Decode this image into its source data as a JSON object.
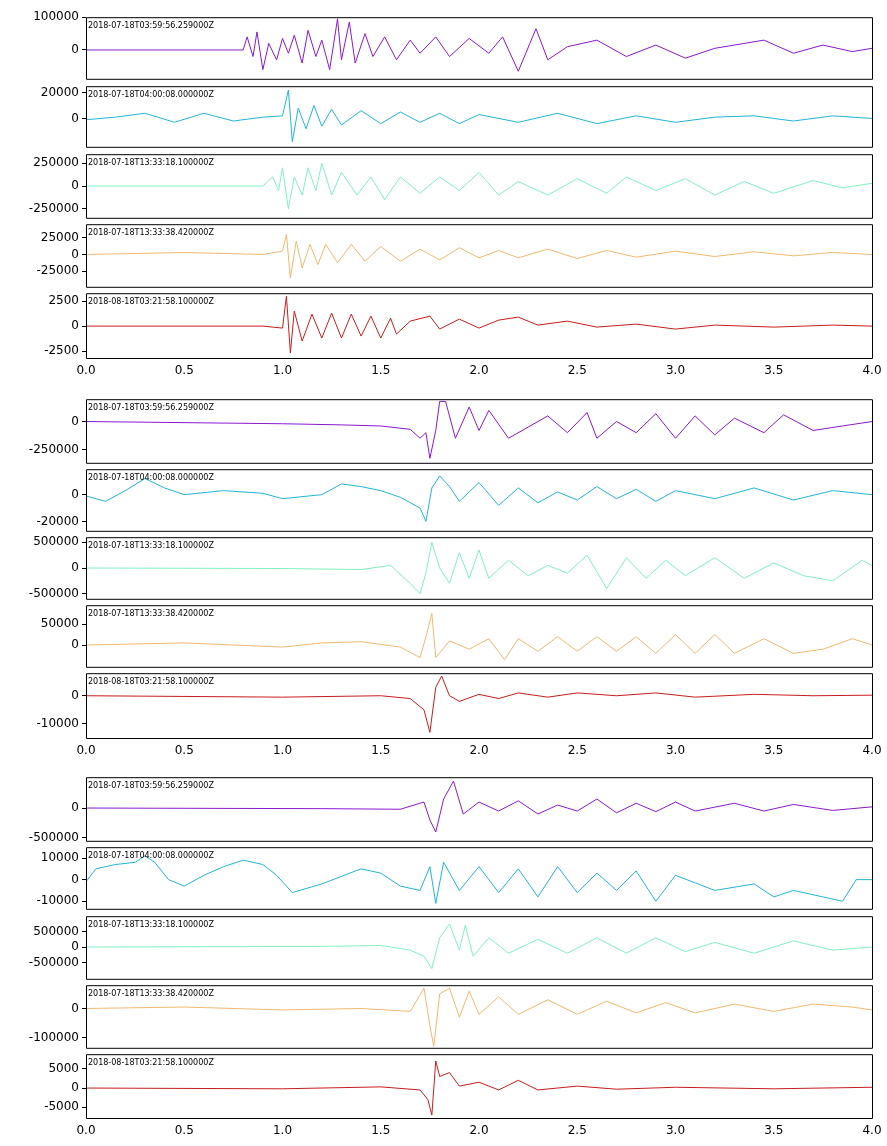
{
  "chart_data": [
    {
      "type": "line",
      "color": "#8a18d0",
      "annotations": [
        "2018-07-18T03:59:56.259000Z"
      ],
      "xlim": [
        0,
        4
      ],
      "ylim": [
        -88000,
        100000
      ],
      "yticks": [
        0,
        100000
      ],
      "tick_labels": "y",
      "x": [
        0,
        0.8,
        0.82,
        0.85,
        0.87,
        0.9,
        0.93,
        0.97,
        1.0,
        1.03,
        1.06,
        1.1,
        1.13,
        1.17,
        1.2,
        1.24,
        1.28,
        1.3,
        1.34,
        1.37,
        1.42,
        1.46,
        1.52,
        1.58,
        1.65,
        1.7,
        1.78,
        1.85,
        1.95,
        2.05,
        2.12,
        2.2,
        2.29,
        2.35,
        2.45,
        2.6,
        2.75,
        2.9,
        3.05,
        3.2,
        3.45,
        3.6,
        3.75,
        3.9,
        4
      ],
      "values": [
        0,
        0,
        40000,
        -20000,
        55000,
        -60000,
        20000,
        -30000,
        35000,
        -10000,
        45000,
        -40000,
        60000,
        -20000,
        30000,
        -60000,
        95000,
        -30000,
        85000,
        -40000,
        50000,
        -20000,
        40000,
        -30000,
        30000,
        -10000,
        40000,
        -20000,
        35000,
        -10000,
        40000,
        -65000,
        65000,
        -30000,
        10000,
        30000,
        -20000,
        15000,
        -25000,
        5000,
        30000,
        -10000,
        15000,
        -5000,
        5000
      ]
    },
    {
      "type": "line",
      "color": "#22b4d8",
      "annotations": [
        "2018-07-18T04:00:08.000000Z"
      ],
      "xlim": [
        0,
        4
      ],
      "ylim": [
        -22000,
        25000
      ],
      "yticks": [
        0,
        20000
      ],
      "tick_labels": "y",
      "x": [
        0,
        0.15,
        0.3,
        0.45,
        0.6,
        0.75,
        0.9,
        1.0,
        1.03,
        1.05,
        1.08,
        1.12,
        1.16,
        1.2,
        1.25,
        1.3,
        1.4,
        1.5,
        1.6,
        1.7,
        1.8,
        1.9,
        2.0,
        2.2,
        2.4,
        2.6,
        2.8,
        3.0,
        3.2,
        3.4,
        3.6,
        3.8,
        4
      ],
      "values": [
        -1000,
        1000,
        4000,
        -3000,
        4000,
        -2000,
        1000,
        2000,
        22000,
        -18000,
        8000,
        -8000,
        10000,
        -6000,
        7000,
        -5000,
        6000,
        -4000,
        5000,
        -3000,
        4000,
        -4000,
        3000,
        -3000,
        4000,
        -4000,
        2000,
        -3000,
        1000,
        2000,
        -2000,
        2000,
        0
      ]
    },
    {
      "type": "line",
      "color": "#80f0c0",
      "annotations": [
        "2018-07-18T13:33:18.100000Z"
      ],
      "xlim": [
        0,
        4
      ],
      "ylim": [
        -350000,
        350000
      ],
      "yticks": [
        -250000,
        0,
        250000
      ],
      "tick_labels": "y",
      "x": [
        0,
        0.9,
        0.95,
        0.98,
        1.0,
        1.03,
        1.06,
        1.1,
        1.13,
        1.17,
        1.2,
        1.25,
        1.3,
        1.38,
        1.45,
        1.52,
        1.6,
        1.7,
        1.8,
        1.9,
        2.0,
        2.1,
        2.2,
        2.35,
        2.5,
        2.65,
        2.75,
        2.9,
        3.05,
        3.2,
        3.35,
        3.5,
        3.7,
        3.85,
        4
      ],
      "values": [
        0,
        0,
        100000,
        -50000,
        200000,
        -250000,
        100000,
        -100000,
        200000,
        -50000,
        250000,
        -100000,
        150000,
        -100000,
        100000,
        -150000,
        100000,
        -80000,
        100000,
        -50000,
        150000,
        -100000,
        50000,
        -100000,
        80000,
        -80000,
        100000,
        -50000,
        80000,
        -100000,
        50000,
        -80000,
        60000,
        -20000,
        30000
      ]
    },
    {
      "type": "line",
      "color": "#f0b870",
      "annotations": [
        "2018-07-18T13:33:38.420000Z"
      ],
      "xlim": [
        0,
        4
      ],
      "ylim": [
        -48000,
        45000
      ],
      "yticks": [
        -25000,
        0,
        25000
      ],
      "tick_labels": "y",
      "x": [
        0,
        0.5,
        0.9,
        1.0,
        1.02,
        1.04,
        1.07,
        1.1,
        1.14,
        1.18,
        1.22,
        1.28,
        1.35,
        1.42,
        1.5,
        1.6,
        1.7,
        1.8,
        1.9,
        2.0,
        2.1,
        2.2,
        2.35,
        2.5,
        2.65,
        2.8,
        3.0,
        3.2,
        3.4,
        3.6,
        3.8,
        4
      ],
      "values": [
        0,
        3000,
        0,
        5000,
        30000,
        -35000,
        20000,
        -20000,
        15000,
        -15000,
        15000,
        -12000,
        15000,
        -10000,
        12000,
        -10000,
        8000,
        -8000,
        10000,
        -5000,
        6000,
        -5000,
        8000,
        -6000,
        6000,
        -4000,
        5000,
        -3000,
        4000,
        -2000,
        3000,
        0
      ]
    },
    {
      "type": "line",
      "color": "#c81c1c",
      "annotations": [
        "2018-08-18T03:21:58.100000Z"
      ],
      "xlim": [
        0,
        4
      ],
      "xticks": [
        {
          "value": 0,
          "label": "0.0"
        },
        {
          "value": 0.5,
          "label": "0.5"
        },
        {
          "value": 1,
          "label": "1.0"
        },
        {
          "value": 1.5,
          "label": "1.5"
        },
        {
          "value": 2,
          "label": "2.0"
        },
        {
          "value": 2.5,
          "label": "2.5"
        },
        {
          "value": 3,
          "label": "3.0"
        },
        {
          "value": 3.5,
          "label": "3.5"
        },
        {
          "value": 4,
          "label": "4.0"
        }
      ],
      "ylim": [
        -3200,
        3300
      ],
      "yticks": [
        -2500,
        0,
        2500
      ],
      "x": [
        0,
        0.9,
        1.0,
        1.02,
        1.04,
        1.06,
        1.1,
        1.15,
        1.2,
        1.25,
        1.3,
        1.35,
        1.4,
        1.45,
        1.5,
        1.55,
        1.58,
        1.65,
        1.75,
        1.8,
        1.9,
        2.0,
        2.1,
        2.2,
        2.3,
        2.45,
        2.6,
        2.8,
        3.0,
        3.2,
        3.5,
        3.8,
        4
      ],
      "values": [
        0,
        0,
        -200,
        3000,
        -2700,
        1500,
        -1500,
        1200,
        -1200,
        1300,
        -1200,
        1200,
        -1000,
        1000,
        -1200,
        800,
        -800,
        500,
        1000,
        -300,
        700,
        -200,
        600,
        900,
        100,
        500,
        -100,
        200,
        -300,
        100,
        -100,
        100,
        0
      ]
    },
    {
      "type": "line",
      "color": "#8a18d0",
      "annotations": [
        "2018-07-18T03:59:56.259000Z"
      ],
      "xlim": [
        0,
        4
      ],
      "ylim": [
        -370000,
        200000
      ],
      "yticks": [
        -250000,
        0
      ],
      "tick_labels": "y",
      "x": [
        0,
        1.0,
        1.3,
        1.5,
        1.65,
        1.7,
        1.73,
        1.75,
        1.78,
        1.8,
        1.83,
        1.88,
        1.95,
        2.0,
        2.05,
        2.15,
        2.25,
        2.35,
        2.45,
        2.55,
        2.6,
        2.7,
        2.8,
        2.9,
        3.0,
        3.1,
        3.2,
        3.3,
        3.45,
        3.55,
        3.7,
        3.85,
        4
      ],
      "values": [
        0,
        -20000,
        -30000,
        -40000,
        -70000,
        -150000,
        -100000,
        -330000,
        -80000,
        180000,
        180000,
        -150000,
        130000,
        -80000,
        100000,
        -150000,
        -50000,
        50000,
        -100000,
        80000,
        -150000,
        0,
        -100000,
        70000,
        -150000,
        50000,
        -120000,
        30000,
        -100000,
        60000,
        -80000,
        -40000,
        0
      ]
    },
    {
      "type": "line",
      "color": "#22b4d8",
      "annotations": [
        "2018-07-18T04:00:08.000000Z"
      ],
      "xlim": [
        0,
        4
      ],
      "ylim": [
        -27000,
        19000
      ],
      "yticks": [
        -20000,
        0
      ],
      "tick_labels": "y",
      "x": [
        0,
        0.1,
        0.2,
        0.3,
        0.4,
        0.5,
        0.7,
        0.9,
        1.0,
        1.2,
        1.3,
        1.4,
        1.5,
        1.6,
        1.7,
        1.73,
        1.76,
        1.8,
        1.85,
        1.9,
        2.0,
        2.1,
        2.2,
        2.3,
        2.4,
        2.5,
        2.6,
        2.7,
        2.8,
        2.9,
        3.0,
        3.2,
        3.4,
        3.6,
        3.8,
        4
      ],
      "values": [
        -1000,
        -5000,
        3000,
        12000,
        5000,
        0,
        3000,
        1000,
        -3000,
        0,
        8000,
        6000,
        3000,
        -2000,
        -10000,
        -20000,
        5000,
        14000,
        6000,
        -5000,
        9000,
        -8000,
        5000,
        -6000,
        2000,
        -4000,
        6000,
        -3000,
        4000,
        -5000,
        3000,
        -3000,
        5000,
        -4000,
        3000,
        0
      ]
    },
    {
      "type": "line",
      "color": "#80f0c0",
      "annotations": [
        "2018-07-18T13:33:18.100000Z"
      ],
      "xlim": [
        0,
        4
      ],
      "ylim": [
        -600000,
        600000
      ],
      "yticks": [
        -500000,
        0,
        500000
      ],
      "tick_labels": "y",
      "x": [
        0,
        1.0,
        1.4,
        1.55,
        1.65,
        1.7,
        1.73,
        1.76,
        1.8,
        1.85,
        1.9,
        1.95,
        2.0,
        2.05,
        2.15,
        2.25,
        2.35,
        2.45,
        2.55,
        2.65,
        2.75,
        2.85,
        2.95,
        3.05,
        3.2,
        3.35,
        3.5,
        3.65,
        3.8,
        3.95,
        4
      ],
      "values": [
        0,
        -10000,
        -30000,
        50000,
        -300000,
        -500000,
        -100000,
        500000,
        0,
        -300000,
        300000,
        -200000,
        350000,
        -200000,
        150000,
        -150000,
        50000,
        -100000,
        250000,
        -400000,
        200000,
        -200000,
        150000,
        -150000,
        200000,
        -200000,
        100000,
        -150000,
        -250000,
        150000,
        50000
      ]
    },
    {
      "type": "line",
      "color": "#f0b870",
      "annotations": [
        "2018-07-18T13:33:38.420000Z"
      ],
      "xlim": [
        0,
        4
      ],
      "ylim": [
        -52000,
        95000
      ],
      "yticks": [
        0,
        50000
      ],
      "tick_labels": "y",
      "x": [
        0,
        0.5,
        1.0,
        1.2,
        1.4,
        1.6,
        1.7,
        1.73,
        1.76,
        1.78,
        1.85,
        1.95,
        2.05,
        2.13,
        2.2,
        2.3,
        2.4,
        2.5,
        2.6,
        2.7,
        2.8,
        2.9,
        3.0,
        3.1,
        3.2,
        3.3,
        3.45,
        3.6,
        3.75,
        3.9,
        4
      ],
      "values": [
        0,
        5000,
        -5000,
        5000,
        8000,
        -5000,
        -30000,
        20000,
        75000,
        -30000,
        10000,
        -10000,
        15000,
        -35000,
        15000,
        -15000,
        20000,
        -15000,
        20000,
        -15000,
        20000,
        -20000,
        25000,
        -20000,
        25000,
        -20000,
        15000,
        -20000,
        -10000,
        15000,
        0
      ]
    },
    {
      "type": "line",
      "color": "#c81c1c",
      "annotations": [
        "2018-08-18T03:21:58.100000Z"
      ],
      "xlim": [
        0,
        4
      ],
      "xticks": [
        {
          "value": 0,
          "label": "0.0"
        },
        {
          "value": 0.5,
          "label": "0.5"
        },
        {
          "value": 1,
          "label": "1.0"
        },
        {
          "value": 1.5,
          "label": "1.5"
        },
        {
          "value": 2,
          "label": "2.0"
        },
        {
          "value": 2.5,
          "label": "2.5"
        },
        {
          "value": 3,
          "label": "3.0"
        },
        {
          "value": 3.5,
          "label": "3.5"
        },
        {
          "value": 4,
          "label": "4.0"
        }
      ],
      "ylim": [
        -15000,
        8000
      ],
      "yticks": [
        -10000,
        0
      ],
      "x": [
        0,
        1.0,
        1.5,
        1.65,
        1.72,
        1.75,
        1.78,
        1.81,
        1.85,
        1.9,
        2.0,
        2.1,
        2.2,
        2.35,
        2.5,
        2.7,
        2.9,
        3.1,
        3.4,
        3.7,
        4
      ],
      "values": [
        0,
        -500,
        0,
        -1000,
        -5000,
        -13000,
        3000,
        7000,
        0,
        -2000,
        500,
        -1000,
        1000,
        -500,
        1000,
        0,
        1000,
        -500,
        500,
        0,
        200
      ]
    },
    {
      "type": "line",
      "color": "#8a18d0",
      "annotations": [
        "2018-07-18T03:59:56.259000Z"
      ],
      "xlim": [
        0,
        4
      ],
      "ylim": [
        -547000,
        515000
      ],
      "yticks": [
        -500000,
        0
      ],
      "tick_labels": "y",
      "x": [
        0,
        1.2,
        1.6,
        1.72,
        1.75,
        1.78,
        1.82,
        1.87,
        1.92,
        2.0,
        2.1,
        2.2,
        2.3,
        2.4,
        2.5,
        2.6,
        2.7,
        2.8,
        2.9,
        3.0,
        3.1,
        3.3,
        3.45,
        3.6,
        3.8,
        4
      ],
      "values": [
        0,
        -10000,
        -20000,
        100000,
        -200000,
        -400000,
        150000,
        450000,
        -100000,
        100000,
        -50000,
        120000,
        -100000,
        50000,
        -50000,
        150000,
        -80000,
        80000,
        -60000,
        100000,
        -50000,
        80000,
        -50000,
        60000,
        -40000,
        20000
      ]
    },
    {
      "type": "line",
      "color": "#22b4d8",
      "annotations": [
        "2018-07-18T04:00:08.000000Z"
      ],
      "xlim": [
        0,
        4
      ],
      "ylim": [
        -13500,
        15000
      ],
      "yticks": [
        -10000,
        0,
        10000
      ],
      "tick_labels": "y",
      "x": [
        0,
        0.05,
        0.15,
        0.25,
        0.3,
        0.35,
        0.42,
        0.5,
        0.6,
        0.7,
        0.8,
        0.9,
        0.97,
        1.05,
        1.2,
        1.4,
        1.5,
        1.6,
        1.7,
        1.75,
        1.78,
        1.82,
        1.9,
        2.0,
        2.1,
        2.2,
        2.3,
        2.4,
        2.5,
        2.6,
        2.7,
        2.8,
        2.9,
        3.0,
        3.2,
        3.4,
        3.5,
        3.6,
        3.75,
        3.85,
        3.92,
        4
      ],
      "values": [
        -1000,
        5000,
        7000,
        8000,
        11000,
        8000,
        0,
        -3000,
        2000,
        6000,
        9000,
        7000,
        2000,
        -6000,
        -2000,
        5000,
        3000,
        -3000,
        -5000,
        6000,
        -11000,
        8000,
        -5000,
        6000,
        -6000,
        5000,
        -8000,
        6000,
        -6000,
        3000,
        -5000,
        4000,
        -10000,
        2000,
        -5000,
        -2000,
        -8000,
        -5000,
        -8000,
        -10000,
        0,
        0
      ]
    },
    {
      "type": "line",
      "color": "#80f0c0",
      "annotations": [
        "2018-07-18T13:33:18.100000Z"
      ],
      "xlim": [
        0,
        4
      ],
      "ylim": [
        -1030000,
        1000000
      ],
      "yticks": [
        -500000,
        0,
        500000
      ],
      "tick_labels": "y",
      "x": [
        0,
        1.2,
        1.5,
        1.65,
        1.72,
        1.76,
        1.8,
        1.85,
        1.9,
        1.93,
        1.97,
        2.05,
        2.15,
        2.3,
        2.45,
        2.6,
        2.75,
        2.9,
        3.05,
        3.2,
        3.4,
        3.6,
        3.8,
        4
      ],
      "values": [
        0,
        20000,
        50000,
        -100000,
        -300000,
        -700000,
        300000,
        750000,
        -100000,
        700000,
        -300000,
        300000,
        -200000,
        250000,
        -200000,
        300000,
        -200000,
        300000,
        -150000,
        150000,
        -200000,
        200000,
        -100000,
        0
      ]
    },
    {
      "type": "line",
      "color": "#f0b870",
      "annotations": [
        "2018-07-18T13:33:38.420000Z"
      ],
      "xlim": [
        0,
        4
      ],
      "ylim": [
        -135000,
        80000
      ],
      "yticks": [
        -100000,
        0
      ],
      "tick_labels": "y",
      "x": [
        0,
        0.5,
        1.0,
        1.4,
        1.65,
        1.72,
        1.75,
        1.77,
        1.8,
        1.85,
        1.9,
        1.95,
        2.0,
        2.1,
        2.2,
        2.35,
        2.5,
        2.65,
        2.8,
        2.95,
        3.1,
        3.3,
        3.5,
        3.7,
        3.9,
        4
      ],
      "values": [
        0,
        5000,
        -5000,
        0,
        -10000,
        70000,
        -60000,
        -130000,
        50000,
        70000,
        -30000,
        60000,
        -20000,
        40000,
        -20000,
        30000,
        -20000,
        25000,
        -15000,
        20000,
        -15000,
        15000,
        -10000,
        15000,
        5000,
        -5000
      ]
    },
    {
      "type": "line",
      "color": "#c81c1c",
      "annotations": [
        "2018-08-18T03:21:58.100000Z"
      ],
      "xlim": [
        0,
        4
      ],
      "xticks": [
        {
          "value": 0,
          "label": "0.0"
        },
        {
          "value": 0.5,
          "label": "0.5"
        },
        {
          "value": 1,
          "label": "1.0"
        },
        {
          "value": 1.5,
          "label": "1.5"
        },
        {
          "value": 2,
          "label": "2.0"
        },
        {
          "value": 2.5,
          "label": "2.5"
        },
        {
          "value": 3,
          "label": "3.0"
        },
        {
          "value": 3.5,
          "label": "3.5"
        },
        {
          "value": 4,
          "label": "4.0"
        }
      ],
      "ylim": [
        -7750,
        8750
      ],
      "yticks": [
        -5000,
        0,
        5000
      ],
      "x": [
        0,
        1.0,
        1.5,
        1.7,
        1.74,
        1.76,
        1.78,
        1.8,
        1.85,
        1.9,
        2.0,
        2.1,
        2.2,
        2.3,
        2.5,
        2.7,
        3.0,
        3.5,
        4
      ],
      "values": [
        0,
        -200,
        300,
        -500,
        -3000,
        -7000,
        7000,
        3000,
        4000,
        500,
        1500,
        -500,
        2000,
        -500,
        500,
        -300,
        200,
        -200,
        200
      ]
    }
  ]
}
